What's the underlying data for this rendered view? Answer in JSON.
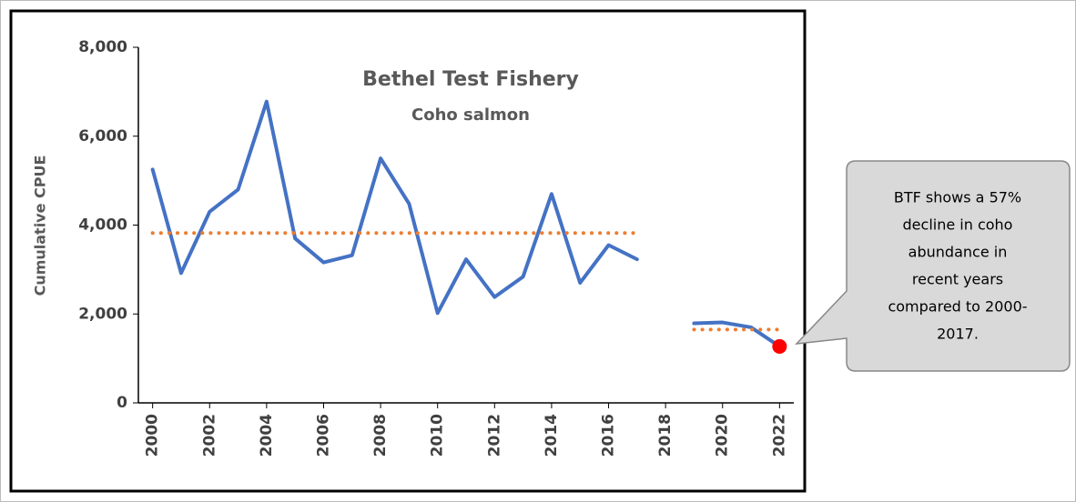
{
  "chart_data": {
    "type": "line",
    "title": "Bethel Test Fishery",
    "subtitle": "Coho salmon",
    "y_label": "Cumulative CPUE",
    "x": [
      2000,
      2001,
      2002,
      2003,
      2004,
      2005,
      2006,
      2007,
      2008,
      2009,
      2010,
      2011,
      2012,
      2013,
      2014,
      2015,
      2016,
      2017,
      2018,
      2019,
      2020,
      2021,
      2022
    ],
    "series": [
      {
        "color": "#4472c4",
        "style": "solid",
        "values": [
          5250,
          2920,
          4300,
          4800,
          6780,
          3700,
          3160,
          3320,
          5500,
          4480,
          2020,
          3230,
          2380,
          2840,
          4700,
          2700,
          3550,
          3230,
          null,
          1790,
          1810,
          1700,
          1270
        ]
      },
      {
        "color": "#ed7d31",
        "style": "dotted",
        "values": [
          3820,
          3820,
          3820,
          3820,
          3820,
          3820,
          3820,
          3820,
          3820,
          3820,
          3820,
          3820,
          3820,
          3820,
          3820,
          3820,
          3820,
          3820,
          null,
          1650,
          1650,
          1650,
          1650
        ]
      }
    ],
    "highlight_color": "#ff0000",
    "xlim": [
      1999.5,
      2022.5
    ],
    "xticks": [
      2000,
      2002,
      2004,
      2006,
      2008,
      2010,
      2012,
      2014,
      2016,
      2018,
      2020,
      2022
    ],
    "ylim": [
      0,
      8000
    ],
    "yticks": [
      0,
      {
        "value": 2000,
        "label": "2,000"
      },
      {
        "value": 4000,
        "label": "4,000"
      },
      {
        "value": 6000,
        "label": "6,000"
      },
      {
        "value": 8000,
        "label": "8,000"
      }
    ],
    "grid": false,
    "annotation": {
      "lines": [
        "BTF shows a 57%",
        "decline in coho",
        "abundance in",
        "recent years",
        "compared to 2000-",
        "2017."
      ]
    }
  }
}
